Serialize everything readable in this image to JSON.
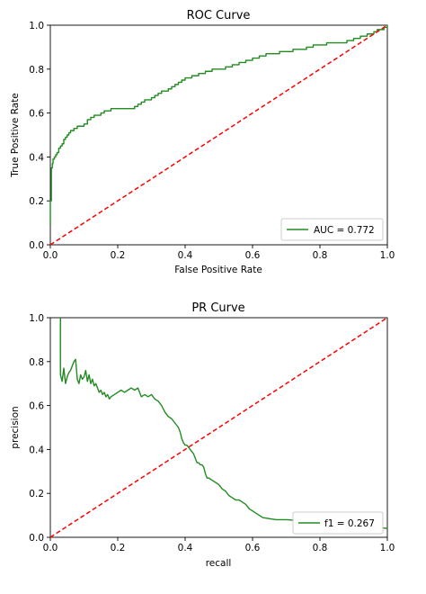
{
  "chart_data": [
    {
      "type": "line",
      "title": "ROC Curve",
      "xlabel": "False Positive Rate",
      "ylabel": "True Positive Rate",
      "xlim": [
        0,
        1
      ],
      "ylim": [
        0,
        1
      ],
      "xticks": [
        "0.0",
        "0.2",
        "0.4",
        "0.6",
        "0.8",
        "1.0"
      ],
      "yticks": [
        "0.0",
        "0.2",
        "0.4",
        "0.6",
        "0.8",
        "1.0"
      ],
      "grid": false,
      "legend_position": "lower-right",
      "series": [
        {
          "name": "AUC = 0.772",
          "color": "#228b22",
          "style": "step",
          "x": [
            0,
            0,
            0.003,
            0.003,
            0.006,
            0.008,
            0.012,
            0.016,
            0.02,
            0.025,
            0.03,
            0.035,
            0.04,
            0.045,
            0.05,
            0.055,
            0.06,
            0.07,
            0.08,
            0.09,
            0.1,
            0.11,
            0.12,
            0.13,
            0.14,
            0.15,
            0.16,
            0.17,
            0.18,
            0.2,
            0.22,
            0.24,
            0.25,
            0.26,
            0.27,
            0.28,
            0.29,
            0.3,
            0.31,
            0.32,
            0.33,
            0.34,
            0.35,
            0.36,
            0.37,
            0.38,
            0.39,
            0.4,
            0.42,
            0.44,
            0.46,
            0.48,
            0.5,
            0.52,
            0.54,
            0.56,
            0.58,
            0.6,
            0.62,
            0.64,
            0.66,
            0.68,
            0.7,
            0.72,
            0.74,
            0.76,
            0.78,
            0.8,
            0.82,
            0.84,
            0.86,
            0.88,
            0.9,
            0.92,
            0.94,
            0.96,
            0.97,
            0.98,
            0.99,
            1.0
          ],
          "y": [
            0.09,
            0.2,
            0.2,
            0.35,
            0.37,
            0.39,
            0.4,
            0.41,
            0.42,
            0.44,
            0.45,
            0.46,
            0.48,
            0.49,
            0.5,
            0.51,
            0.52,
            0.53,
            0.54,
            0.54,
            0.55,
            0.57,
            0.58,
            0.59,
            0.59,
            0.6,
            0.61,
            0.61,
            0.62,
            0.62,
            0.62,
            0.62,
            0.63,
            0.64,
            0.65,
            0.66,
            0.66,
            0.67,
            0.68,
            0.69,
            0.7,
            0.7,
            0.71,
            0.72,
            0.73,
            0.74,
            0.75,
            0.76,
            0.77,
            0.78,
            0.79,
            0.8,
            0.8,
            0.81,
            0.82,
            0.83,
            0.84,
            0.85,
            0.86,
            0.87,
            0.87,
            0.88,
            0.88,
            0.89,
            0.89,
            0.9,
            0.91,
            0.91,
            0.92,
            0.92,
            0.92,
            0.93,
            0.94,
            0.95,
            0.96,
            0.97,
            0.98,
            0.98,
            0.99,
            1.0
          ]
        },
        {
          "name": "",
          "color": "#ff0000",
          "style": "dashed",
          "x": [
            0,
            1
          ],
          "y": [
            0,
            1
          ]
        }
      ]
    },
    {
      "type": "line",
      "title": "PR Curve",
      "xlabel": "recall",
      "ylabel": "precision",
      "xlim": [
        0,
        1
      ],
      "ylim": [
        0,
        1
      ],
      "xticks": [
        "0.0",
        "0.2",
        "0.4",
        "0.6",
        "0.8",
        "1.0"
      ],
      "yticks": [
        "0.0",
        "0.2",
        "0.4",
        "0.6",
        "0.8",
        "1.0"
      ],
      "grid": false,
      "legend_position": "lower-right",
      "series": [
        {
          "name": "f1 = 0.267",
          "color": "#228b22",
          "style": "line",
          "x": [
            0.03,
            0.03,
            0.035,
            0.04,
            0.045,
            0.05,
            0.055,
            0.06,
            0.065,
            0.07,
            0.075,
            0.08,
            0.085,
            0.09,
            0.095,
            0.1,
            0.105,
            0.11,
            0.115,
            0.12,
            0.125,
            0.13,
            0.135,
            0.14,
            0.145,
            0.15,
            0.155,
            0.16,
            0.165,
            0.17,
            0.175,
            0.18,
            0.19,
            0.2,
            0.21,
            0.22,
            0.23,
            0.24,
            0.25,
            0.26,
            0.27,
            0.28,
            0.29,
            0.3,
            0.31,
            0.32,
            0.33,
            0.34,
            0.35,
            0.36,
            0.37,
            0.38,
            0.385,
            0.39,
            0.395,
            0.4,
            0.405,
            0.41,
            0.415,
            0.42,
            0.425,
            0.43,
            0.435,
            0.44,
            0.445,
            0.45,
            0.455,
            0.46,
            0.465,
            0.47,
            0.48,
            0.49,
            0.5,
            0.51,
            0.52,
            0.53,
            0.54,
            0.55,
            0.56,
            0.57,
            0.58,
            0.59,
            0.6,
            0.61,
            0.62,
            0.63,
            0.65,
            0.67,
            0.7,
            0.75,
            0.8,
            0.85,
            0.9,
            0.95,
            1.0
          ],
          "y": [
            1.0,
            0.74,
            0.71,
            0.77,
            0.7,
            0.73,
            0.75,
            0.76,
            0.78,
            0.8,
            0.81,
            0.72,
            0.7,
            0.74,
            0.72,
            0.73,
            0.76,
            0.71,
            0.74,
            0.7,
            0.72,
            0.69,
            0.7,
            0.68,
            0.66,
            0.67,
            0.65,
            0.66,
            0.64,
            0.65,
            0.63,
            0.64,
            0.65,
            0.66,
            0.67,
            0.66,
            0.67,
            0.68,
            0.67,
            0.68,
            0.64,
            0.65,
            0.64,
            0.65,
            0.63,
            0.62,
            0.6,
            0.57,
            0.55,
            0.54,
            0.52,
            0.5,
            0.48,
            0.45,
            0.43,
            0.42,
            0.42,
            0.41,
            0.4,
            0.39,
            0.38,
            0.36,
            0.34,
            0.34,
            0.33,
            0.33,
            0.32,
            0.29,
            0.27,
            0.27,
            0.26,
            0.25,
            0.24,
            0.22,
            0.21,
            0.19,
            0.18,
            0.17,
            0.17,
            0.16,
            0.15,
            0.13,
            0.12,
            0.11,
            0.1,
            0.09,
            0.085,
            0.08,
            0.08,
            0.075,
            0.07,
            0.065,
            0.06,
            0.05,
            0.04
          ]
        },
        {
          "name": "",
          "color": "#ff0000",
          "style": "dashed",
          "x": [
            0,
            1
          ],
          "y": [
            0,
            1
          ]
        }
      ]
    }
  ]
}
